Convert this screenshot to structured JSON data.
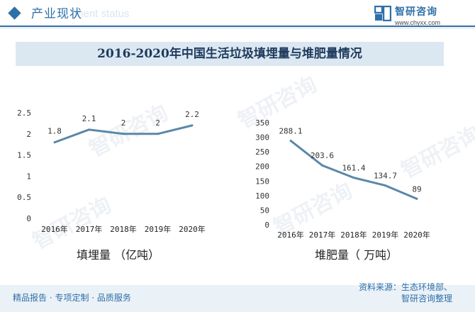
{
  "header": {
    "section_title": "产业现状",
    "section_subtitle_en": "ment status",
    "logo_name": "智研咨询",
    "logo_url": "www.chyxx.com"
  },
  "title": "2016-2020年中国生活垃圾填埋量与堆肥量情况",
  "watermark_text": "智研咨询",
  "chart_data": [
    {
      "type": "line",
      "categories": [
        "2016年",
        "2017年",
        "2018年",
        "2019年",
        "2020年"
      ],
      "series": [
        {
          "values": [
            1.8,
            2.1,
            2.0,
            2.0,
            2.2
          ]
        }
      ],
      "data_labels": [
        "1.8",
        "2.1",
        "2",
        "2",
        "2.2"
      ],
      "y_ticks": [
        "0",
        "0.5",
        "1",
        "1.5",
        "2",
        "2.5"
      ],
      "ylim": [
        0,
        2.5
      ],
      "caption": "填埋量 （亿吨）",
      "grid": false,
      "color": "#5a88a8"
    },
    {
      "type": "line",
      "categories": [
        "2016年",
        "2017年",
        "2018年",
        "2019年",
        "2020年"
      ],
      "series": [
        {
          "values": [
            288.1,
            203.6,
            161.4,
            134.7,
            89
          ]
        }
      ],
      "data_labels": [
        "288.1",
        "203.6",
        "161.4",
        "134.7",
        "89"
      ],
      "y_ticks": [
        "0",
        "50",
        "100",
        "150",
        "200",
        "250",
        "300",
        "350"
      ],
      "ylim": [
        0,
        350
      ],
      "caption": "堆肥量（ 万吨）",
      "grid": false,
      "color": "#5a88a8"
    }
  ],
  "footer": {
    "left": "精品报告 · 专项定制 · 品质服务",
    "source_line1": "资料来源：生态环境部、",
    "source_line2": "智研咨询整理"
  }
}
